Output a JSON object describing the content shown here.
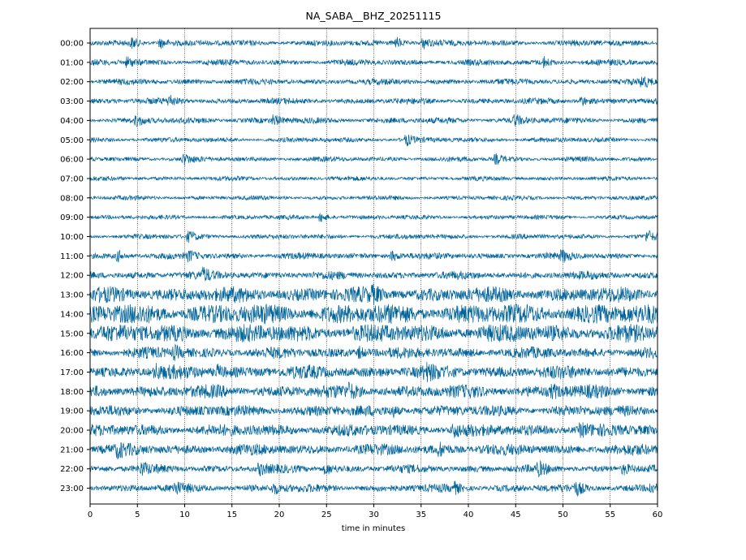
{
  "chart_data": {
    "type": "line",
    "title": "NA_SABA__BHZ_20251115",
    "xlabel": "time in minutes",
    "ylabel": "",
    "xlim": [
      0,
      60
    ],
    "xticks": [
      0,
      5,
      10,
      15,
      20,
      25,
      30,
      35,
      40,
      45,
      50,
      55,
      60
    ],
    "ytick_labels": [
      "00:00",
      "01:00",
      "02:00",
      "03:00",
      "04:00",
      "05:00",
      "06:00",
      "07:00",
      "08:00",
      "09:00",
      "10:00",
      "11:00",
      "12:00",
      "13:00",
      "14:00",
      "15:00",
      "16:00",
      "17:00",
      "18:00",
      "19:00",
      "20:00",
      "21:00",
      "22:00",
      "23:00"
    ],
    "grid": "vertical dotted at each x tick",
    "trace_color": "#00649b",
    "series": [
      {
        "hour": "00:00",
        "relative_amplitude": 0.3,
        "events_min": [
          4.5,
          7.5,
          32.5,
          35.3
        ]
      },
      {
        "hour": "01:00",
        "relative_amplitude": 0.3,
        "events_min": [
          4.0,
          48.0
        ]
      },
      {
        "hour": "02:00",
        "relative_amplitude": 0.3,
        "events_min": [
          58.5
        ]
      },
      {
        "hour": "03:00",
        "relative_amplitude": 0.3,
        "events_min": [
          8.5,
          52.0
        ]
      },
      {
        "hour": "04:00",
        "relative_amplitude": 0.3,
        "events_min": [
          5.0,
          19.5,
          45.0
        ]
      },
      {
        "hour": "05:00",
        "relative_amplitude": 0.25,
        "events_min": [
          33.5
        ]
      },
      {
        "hour": "06:00",
        "relative_amplitude": 0.25,
        "events_min": [
          10.0,
          43.0
        ]
      },
      {
        "hour": "07:00",
        "relative_amplitude": 0.22,
        "events_min": []
      },
      {
        "hour": "08:00",
        "relative_amplitude": 0.22,
        "events_min": []
      },
      {
        "hour": "09:00",
        "relative_amplitude": 0.22,
        "events_min": [
          24.5
        ]
      },
      {
        "hour": "10:00",
        "relative_amplitude": 0.25,
        "events_min": [
          10.5,
          59.0
        ]
      },
      {
        "hour": "11:00",
        "relative_amplitude": 0.32,
        "events_min": [
          3.0,
          10.5,
          32.0,
          50.0
        ]
      },
      {
        "hour": "12:00",
        "relative_amplitude": 0.4,
        "events_min": [
          12.0
        ]
      },
      {
        "hour": "13:00",
        "relative_amplitude": 0.75,
        "events_min": [
          30.0
        ]
      },
      {
        "hour": "14:00",
        "relative_amplitude": 1.0,
        "events_min": []
      },
      {
        "hour": "15:00",
        "relative_amplitude": 0.9,
        "events_min": []
      },
      {
        "hour": "16:00",
        "relative_amplitude": 0.55,
        "events_min": [
          9.0,
          28.5
        ]
      },
      {
        "hour": "17:00",
        "relative_amplitude": 0.65,
        "events_min": [
          7.0,
          13.5,
          35.5
        ]
      },
      {
        "hour": "18:00",
        "relative_amplitude": 0.65,
        "events_min": [
          27.5,
          49.0
        ]
      },
      {
        "hour": "19:00",
        "relative_amplitude": 0.55,
        "events_min": [
          32.0
        ]
      },
      {
        "hour": "20:00",
        "relative_amplitude": 0.6,
        "events_min": [
          38.5,
          52.0
        ]
      },
      {
        "hour": "21:00",
        "relative_amplitude": 0.55,
        "events_min": [
          3.0,
          37.0
        ]
      },
      {
        "hour": "22:00",
        "relative_amplitude": 0.4,
        "events_min": [
          5.5,
          18.0,
          25.0,
          47.5,
          56.5
        ]
      },
      {
        "hour": "23:00",
        "relative_amplitude": 0.4,
        "events_min": [
          9.0,
          19.5,
          38.5,
          51.5,
          59.3
        ]
      }
    ]
  }
}
